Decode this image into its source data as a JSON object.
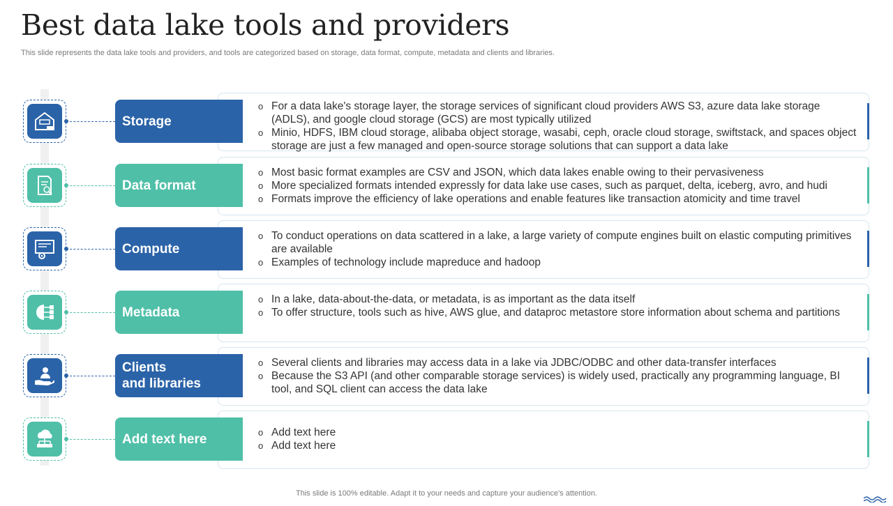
{
  "title": "Best data lake tools and providers",
  "subtitle": "This slide represents the data lake tools and providers, and tools are categorized based on storage, data format, compute, metadata and clients and libraries.",
  "footer": "This slide is 100% editable. Adapt it to your needs and capture your audience's attention.",
  "colors": {
    "blue": "#2b63a8",
    "teal": "#4fbfa8"
  },
  "rows": [
    {
      "label": "Storage",
      "icon": "storage-house-icon",
      "bullets": [
        "For a data lake's storage layer, the storage services of significant cloud providers AWS S3, azure  data lake storage (ADLS), and google cloud storage (GCS) are most typically utilized",
        "Minio, HDFS, IBM cloud storage, alibaba object storage, wasabi, ceph, oracle cloud storage, swiftstack,  and spaces object storage are just a few managed and open-source storage solutions that can support a data lake"
      ]
    },
    {
      "label": "Data format",
      "icon": "document-search-icon",
      "bullets": [
        "Most basic format examples are CSV and JSON, which data lakes enable owing to their pervasiveness",
        "More specialized formats intended expressly for data lake use cases, such as parquet, delta, iceberg, avro, and hudi",
        "Formats improve the efficiency of lake operations and enable features like transaction atomicity and time travel"
      ]
    },
    {
      "label": "Compute",
      "icon": "monitor-gear-icon",
      "bullets": [
        "To conduct operations on data scattered in a lake, a large variety of compute engines built on elastic computing primitives are available",
        "Examples of technology  include mapreduce and hadoop"
      ]
    },
    {
      "label": "Metadata",
      "icon": "gear-network-icon",
      "bullets": [
        "In a lake, data-about-the-data,  or metadata, is as important as the data itself",
        "To offer structure,  tools such as hive, AWS glue, and dataproc metastore store information about schema and partitions"
      ]
    },
    {
      "label": "Clients\nand libraries",
      "icon": "user-hand-icon",
      "bullets": [
        "Several clients and libraries may access data in a lake via JDBC/ODBC and other data-transfer interfaces",
        "Because the S3 API (and other comparable storage services) is widely used, practically any programming language, BI tool, and SQL client can access the data lake"
      ]
    },
    {
      "label": "Add text here",
      "icon": "cloud-network-icon",
      "bullets": [
        "Add text here",
        "Add text here"
      ]
    }
  ]
}
